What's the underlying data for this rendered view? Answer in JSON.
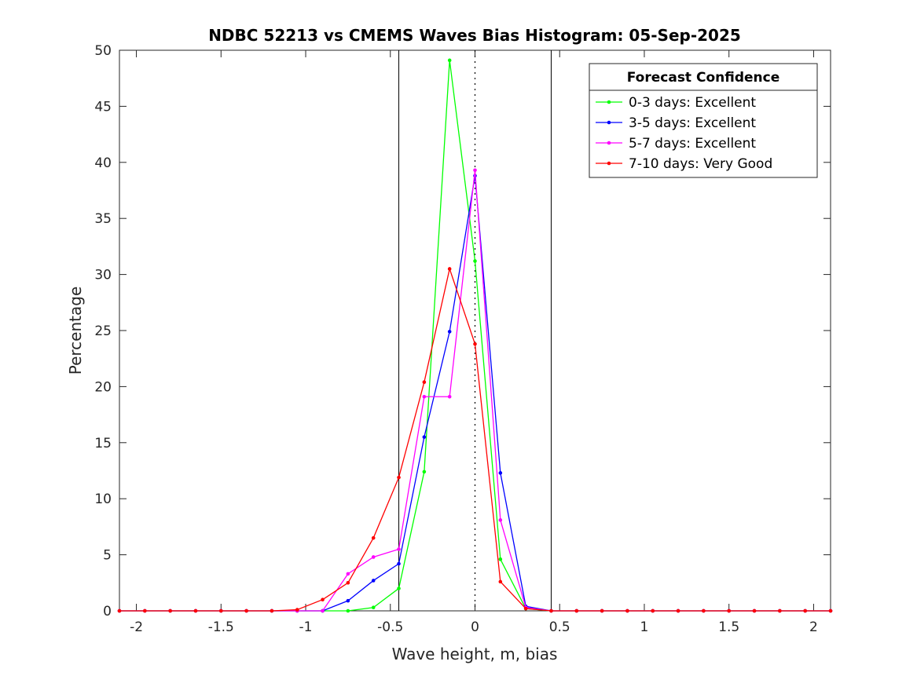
{
  "chart_data": {
    "type": "line",
    "title": "NDBC 52213 vs CMEMS Waves Bias Histogram: 05-Sep-2025",
    "xlabel": "Wave height, m, bias",
    "ylabel": "Percentage",
    "xlim": [
      -2.1,
      2.1
    ],
    "ylim": [
      0,
      50
    ],
    "xticks": [
      -2,
      -1.5,
      -1,
      -0.5,
      0,
      0.5,
      1,
      1.5,
      2
    ],
    "xtick_labels": [
      "-2",
      "-1.5",
      "-1",
      "-0.5",
      "0",
      "0.5",
      "1",
      "1.5",
      "2"
    ],
    "yticks": [
      0,
      5,
      10,
      15,
      20,
      25,
      30,
      35,
      40,
      45,
      50
    ],
    "ytick_labels": [
      "0",
      "5",
      "10",
      "15",
      "20",
      "25",
      "30",
      "35",
      "40",
      "45",
      "50"
    ],
    "grid": false,
    "reference_lines": {
      "solid": [
        -0.45,
        0.45
      ],
      "dotted": [
        0
      ]
    },
    "legend": {
      "title": "Forecast Confidence",
      "placement": "top-right"
    },
    "x": [
      -2.1,
      -1.95,
      -1.8,
      -1.65,
      -1.5,
      -1.35,
      -1.2,
      -1.05,
      -0.9,
      -0.75,
      -0.6,
      -0.45,
      -0.3,
      -0.15,
      0,
      0.15,
      0.3,
      0.45,
      0.6,
      0.75,
      0.9,
      1.05,
      1.2,
      1.35,
      1.5,
      1.65,
      1.8,
      1.95,
      2.1
    ],
    "series": [
      {
        "name": "0-3 days: Excellent",
        "color": "#00ff00",
        "values": [
          0,
          0,
          0,
          0,
          0,
          0,
          0,
          0,
          0,
          0,
          0.3,
          2.0,
          12.4,
          49.1,
          31.2,
          4.6,
          0.2,
          0,
          0,
          0,
          0,
          0,
          0,
          0,
          0,
          0,
          0,
          0,
          0
        ]
      },
      {
        "name": "3-5 days: Excellent",
        "color": "#0000ff",
        "values": [
          0,
          0,
          0,
          0,
          0,
          0,
          0,
          0,
          0,
          0.9,
          2.7,
          4.2,
          15.5,
          24.9,
          38.8,
          12.3,
          0.4,
          0,
          0,
          0,
          0,
          0,
          0,
          0,
          0,
          0,
          0,
          0,
          0
        ]
      },
      {
        "name": "5-7 days: Excellent",
        "color": "#ff00ff",
        "values": [
          0,
          0,
          0,
          0,
          0,
          0,
          0,
          0,
          0,
          3.3,
          4.8,
          5.5,
          19.1,
          19.1,
          39.3,
          8.1,
          0.3,
          0,
          0,
          0,
          0,
          0,
          0,
          0,
          0,
          0,
          0,
          0,
          0
        ]
      },
      {
        "name": "7-10 days: Very Good",
        "color": "#ff0000",
        "values": [
          0,
          0,
          0,
          0,
          0,
          0,
          0,
          0.1,
          1.0,
          2.5,
          6.5,
          11.9,
          20.4,
          30.5,
          23.8,
          2.6,
          0.2,
          0,
          0,
          0,
          0,
          0,
          0,
          0,
          0,
          0,
          0,
          0,
          0
        ]
      }
    ]
  }
}
